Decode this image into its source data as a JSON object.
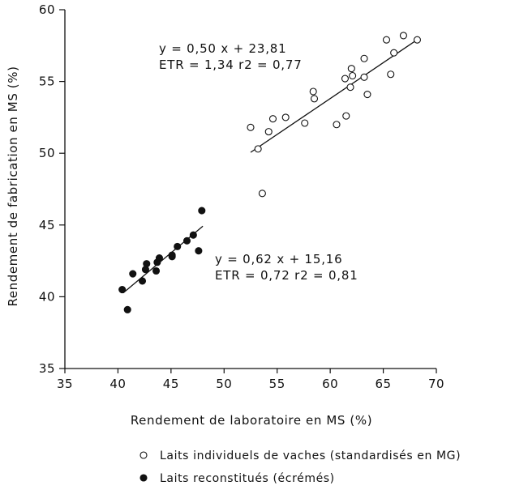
{
  "chart_data": {
    "type": "scatter",
    "xlabel": "Rendement de laboratoire en MS (%)",
    "ylabel": "Rendement de fabrication en MS (%)",
    "xlim": [
      35,
      70
    ],
    "ylim": [
      35,
      60
    ],
    "xticks": [
      35,
      40,
      45,
      50,
      55,
      60,
      65,
      70
    ],
    "yticks": [
      35,
      40,
      45,
      50,
      55,
      60
    ],
    "series": [
      {
        "name": "Laits individuels de vaches (standardisés en MG)",
        "marker": "open-circle",
        "fit": {
          "slope": 0.5,
          "intercept": 23.81,
          "x_range": [
            52.5,
            68.2
          ]
        },
        "annotation": [
          "y = 0,50 x + 23,81",
          "ETR = 1,34   r2 = 0,77"
        ],
        "points": [
          [
            52.5,
            51.8
          ],
          [
            53.2,
            50.3
          ],
          [
            53.6,
            47.2
          ],
          [
            54.2,
            51.5
          ],
          [
            54.6,
            52.4
          ],
          [
            55.8,
            52.5
          ],
          [
            57.6,
            52.1
          ],
          [
            58.4,
            54.3
          ],
          [
            58.5,
            53.8
          ],
          [
            60.6,
            52.0
          ],
          [
            61.4,
            55.2
          ],
          [
            61.5,
            52.6
          ],
          [
            61.9,
            54.6
          ],
          [
            62.0,
            55.9
          ],
          [
            62.1,
            55.4
          ],
          [
            63.2,
            56.6
          ],
          [
            63.2,
            55.3
          ],
          [
            63.5,
            54.1
          ],
          [
            65.3,
            57.9
          ],
          [
            65.7,
            55.5
          ],
          [
            66.0,
            57.0
          ],
          [
            66.9,
            58.2
          ],
          [
            68.2,
            57.9
          ]
        ]
      },
      {
        "name": "Laits reconstitués (écrémés)",
        "marker": "filled-circle",
        "fit": {
          "slope": 0.62,
          "intercept": 15.16,
          "x_range": [
            40.5,
            48.0
          ]
        },
        "annotation": [
          "y = 0,62 x + 15,16",
          "ETR = 0,72   r2 = 0,81"
        ],
        "points": [
          [
            40.4,
            40.5
          ],
          [
            40.9,
            39.1
          ],
          [
            41.4,
            41.6
          ],
          [
            42.3,
            41.1
          ],
          [
            42.6,
            41.9
          ],
          [
            42.7,
            42.3
          ],
          [
            43.6,
            41.8
          ],
          [
            43.7,
            42.4
          ],
          [
            43.9,
            42.7
          ],
          [
            45.1,
            42.8
          ],
          [
            45.1,
            42.9
          ],
          [
            45.6,
            43.5
          ],
          [
            46.5,
            43.9
          ],
          [
            47.1,
            44.3
          ],
          [
            47.6,
            43.2
          ],
          [
            47.9,
            46.0
          ]
        ]
      }
    ],
    "legend": {
      "placement": "bottom"
    }
  }
}
